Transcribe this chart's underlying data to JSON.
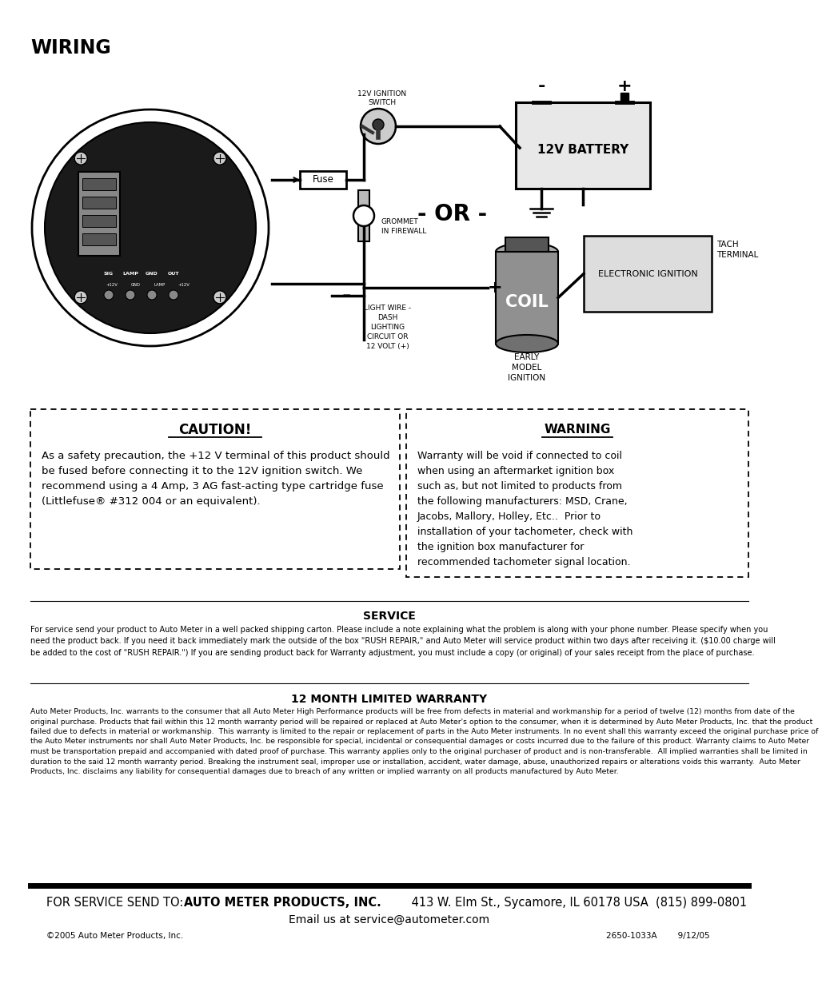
{
  "title": "WIRING",
  "bg_color": "#ffffff",
  "text_color": "#000000",
  "caution_title": "CAUTION!",
  "caution_text": "As a safety precaution, the +12 V terminal of this product should\nbe fused before connecting it to the 12V ignition switch. We\nrecommend using a 4 Amp, 3 AG fast-acting type cartridge fuse\n(Littlefuse® #312 004 or an equivalent).",
  "warning_title": "WARNING",
  "warning_text": "Warranty will be void if connected to coil\nwhen using an aftermarket ignition box\nsuch as, but not limited to products from\nthe following manufacturers: MSD, Crane,\nJacobs, Mallory, Holley, Etc..  Prior to\ninstallation of your tachometer, check with\nthe ignition box manufacturer for\nrecommended tachometer signal location.",
  "service_title": "SERVICE",
  "service_text": "For service send your product to Auto Meter in a well packed shipping carton. Please include a note explaining what the problem is along with your phone number. Please specify when you\nneed the product back. If you need it back immediately mark the outside of the box \"RUSH REPAIR,\" and Auto Meter will service product within two days after receiving it. ($10.00 charge will\nbe added to the cost of \"RUSH REPAIR.\") If you are sending product back for Warranty adjustment, you must include a copy (or original) of your sales receipt from the place of purchase.",
  "warranty_title": "12 MONTH LIMITED WARRANTY",
  "warranty_text": "Auto Meter Products, Inc. warrants to the consumer that all Auto Meter High Performance products will be free from defects in material and workmanship for a period of twelve (12) months from date of the\noriginal purchase. Products that fail within this 12 month warranty period will be repaired or replaced at Auto Meter's option to the consumer, when it is determined by Auto Meter Products, Inc. that the product\nfailed due to defects in material or workmanship.  This warranty is limited to the repair or replacement of parts in the Auto Meter instruments. In no event shall this warranty exceed the original purchase price of\nthe Auto Meter instruments nor shall Auto Meter Products, Inc. be responsible for special, incidental or consequential damages or costs incurred due to the failure of this product. Warranty claims to Auto Meter\nmust be transportation prepaid and accompanied with dated proof of purchase. This warranty applies only to the original purchaser of product and is non-transferable.  All implied warranties shall be limited in\nduration to the said 12 month warranty period. Breaking the instrument seal, improper use or installation, accident, water damage, abuse, unauthorized repairs or alterations voids this warranty.  Auto Meter\nProducts, Inc. disclaims any liability for consequential damages due to breach of any written or implied warranty on all products manufactured by Auto Meter.",
  "footer_line1_normal": "FOR SERVICE SEND TO: ",
  "footer_line1_bold": "AUTO METER PRODUCTS, INC.",
  "footer_line1_rest": " 413 W. Elm St., Sycamore, IL 60178 USA  (815) 899-0801",
  "footer_line2": "Email us at service@autometer.com",
  "footer_left": "©2005 Auto Meter Products, Inc.",
  "footer_right": "2650-1033A        9/12/05"
}
